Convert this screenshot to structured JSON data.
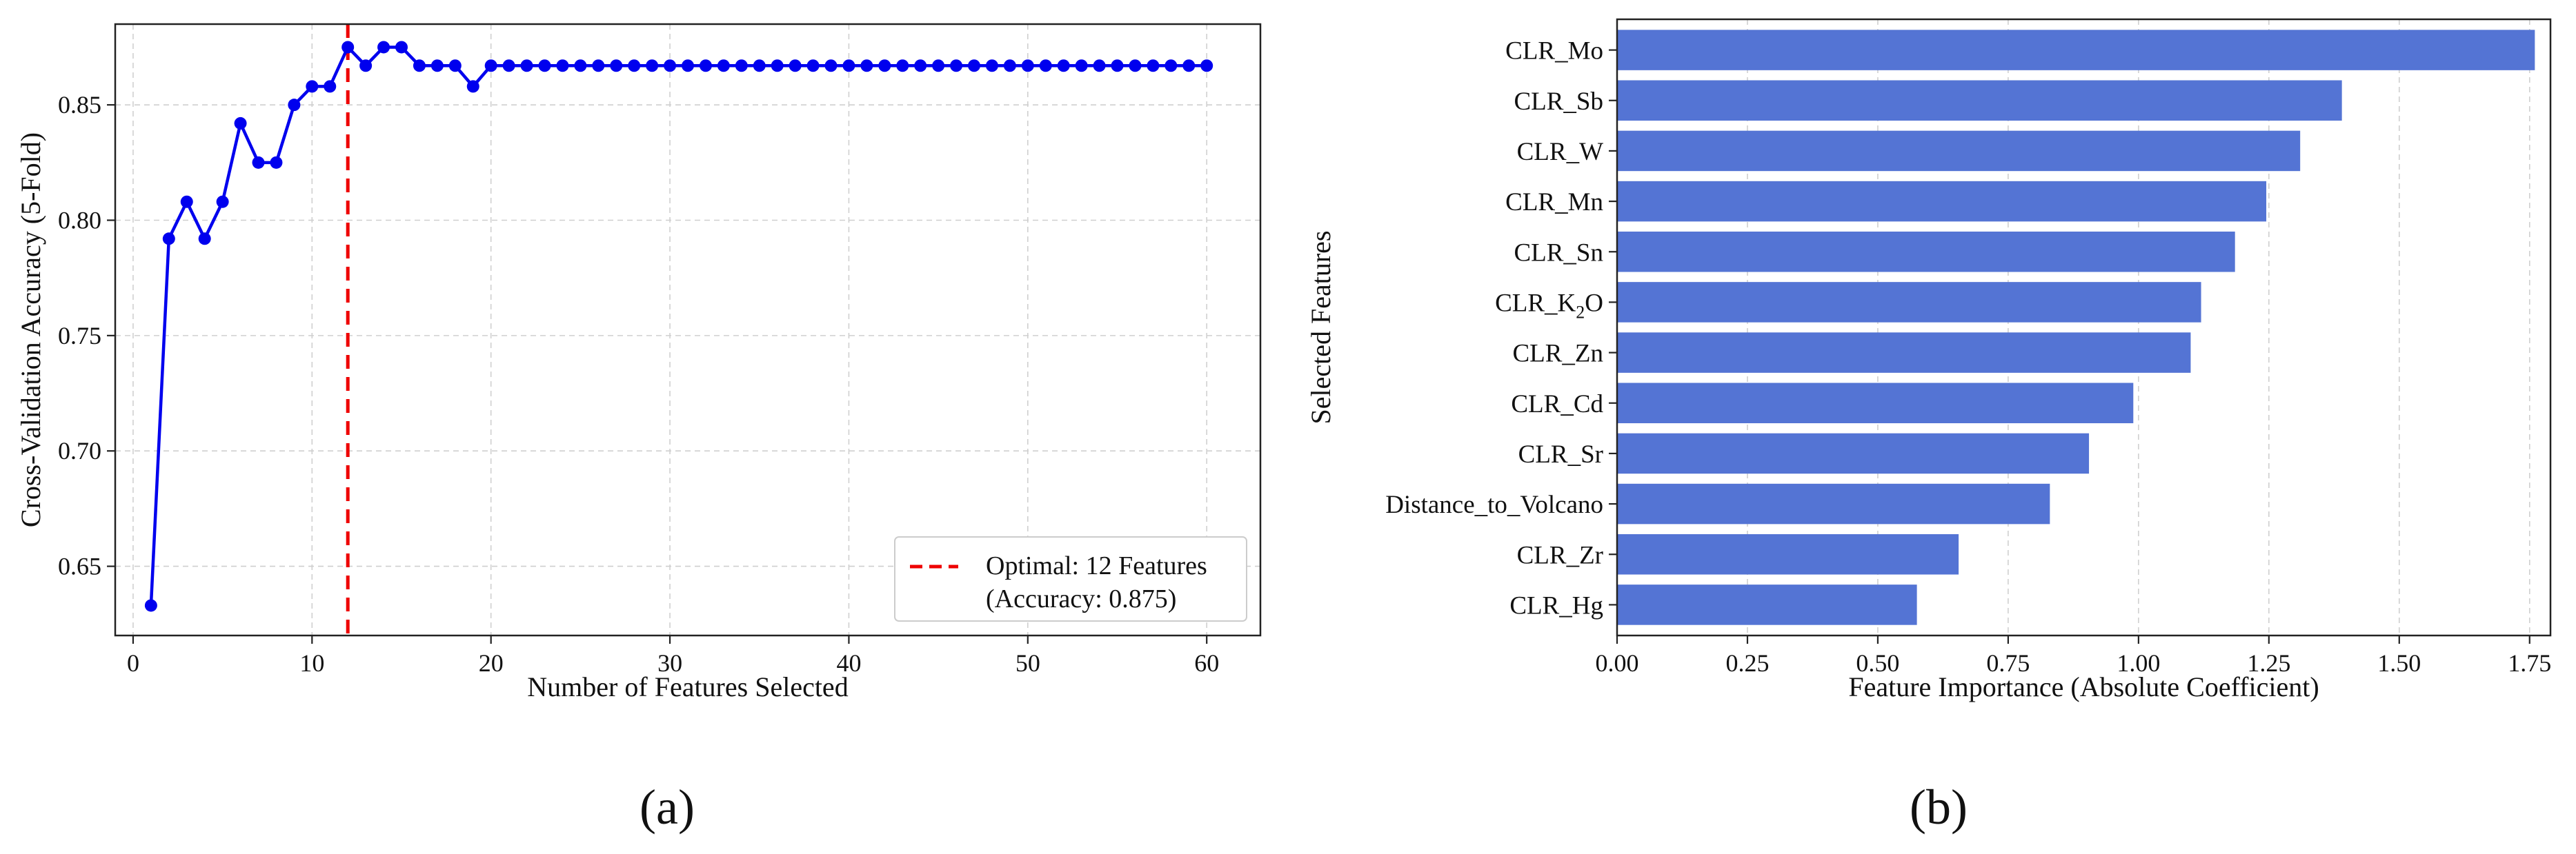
{
  "chart_data": [
    {
      "type": "line",
      "panel_label": "(a)",
      "xlabel": "Number of Features Selected",
      "ylabel": "Cross-Validation Accuracy (5-Fold)",
      "xlim": [
        -1,
        63
      ],
      "ylim": [
        0.62,
        0.885
      ],
      "xticks": [
        0,
        10,
        20,
        30,
        40,
        50,
        60
      ],
      "yticks": [
        0.65,
        0.7,
        0.75,
        0.8,
        0.85
      ],
      "ytick_labels": [
        "0.65",
        "0.70",
        "0.75",
        "0.80",
        "0.85"
      ],
      "grid": true,
      "legend_position": "lower-right",
      "series": [
        {
          "color": "#0000ee",
          "marker": "circle",
          "x": [
            1,
            2,
            3,
            4,
            5,
            6,
            7,
            8,
            9,
            10,
            11,
            12,
            13,
            14,
            15,
            16,
            17,
            18,
            19,
            20,
            21,
            22,
            23,
            24,
            25,
            26,
            27,
            28,
            29,
            30,
            31,
            32,
            33,
            34,
            35,
            36,
            37,
            38,
            39,
            40,
            41,
            42,
            43,
            44,
            45,
            46,
            47,
            48,
            49,
            50,
            51,
            52,
            53,
            54,
            55,
            56,
            57,
            58,
            59,
            60
          ],
          "values": [
            0.633,
            0.792,
            0.808,
            0.792,
            0.808,
            0.842,
            0.825,
            0.825,
            0.85,
            0.858,
            0.858,
            0.875,
            0.867,
            0.875,
            0.875,
            0.867,
            0.867,
            0.867,
            0.858,
            0.867,
            0.867,
            0.867,
            0.867,
            0.867,
            0.867,
            0.867,
            0.867,
            0.867,
            0.867,
            0.867,
            0.867,
            0.867,
            0.867,
            0.867,
            0.867,
            0.867,
            0.867,
            0.867,
            0.867,
            0.867,
            0.867,
            0.867,
            0.867,
            0.867,
            0.867,
            0.867,
            0.867,
            0.867,
            0.867,
            0.867,
            0.867,
            0.867,
            0.867,
            0.867,
            0.867,
            0.867,
            0.867,
            0.867,
            0.867,
            0.867
          ]
        }
      ],
      "reference_line": {
        "orientation": "vertical",
        "x": 12,
        "color": "#ee0000",
        "style": "dashed",
        "legend_line1": "Optimal: 12 Features",
        "legend_line2": "(Accuracy: 0.875)"
      }
    },
    {
      "type": "bar",
      "orientation": "horizontal",
      "panel_label": "(b)",
      "xlabel": "Feature Importance (Absolute Coefficient)",
      "ylabel": "Selected Features",
      "xlim": [
        0,
        1.79
      ],
      "xticks": [
        0.0,
        0.25,
        0.5,
        0.75,
        1.0,
        1.25,
        1.5,
        1.75
      ],
      "xtick_labels": [
        "0.00",
        "0.25",
        "0.50",
        "0.75",
        "1.00",
        "1.25",
        "1.50",
        "1.75"
      ],
      "grid": true,
      "bar_color": "#5474d4",
      "categories": [
        "CLR_Mo",
        "CLR_Sb",
        "CLR_W",
        "CLR_Mn",
        "CLR_Sn",
        "CLR_K",
        "CLR_Zn",
        "CLR_Cd",
        "CLR_Sr",
        "Distance_to_Volcano",
        "CLR_Zr",
        "CLR_Hg"
      ],
      "category_suffix": [
        "",
        "",
        "",
        "",
        "",
        "O",
        "",
        "",
        "",
        "",
        "",
        ""
      ],
      "category_subscript": [
        "",
        "",
        "",
        "",
        "",
        "2",
        "",
        "",
        "",
        "",
        "",
        ""
      ],
      "values": [
        1.76,
        1.39,
        1.31,
        1.245,
        1.185,
        1.12,
        1.1,
        0.99,
        0.905,
        0.83,
        0.655,
        0.575
      ]
    }
  ]
}
